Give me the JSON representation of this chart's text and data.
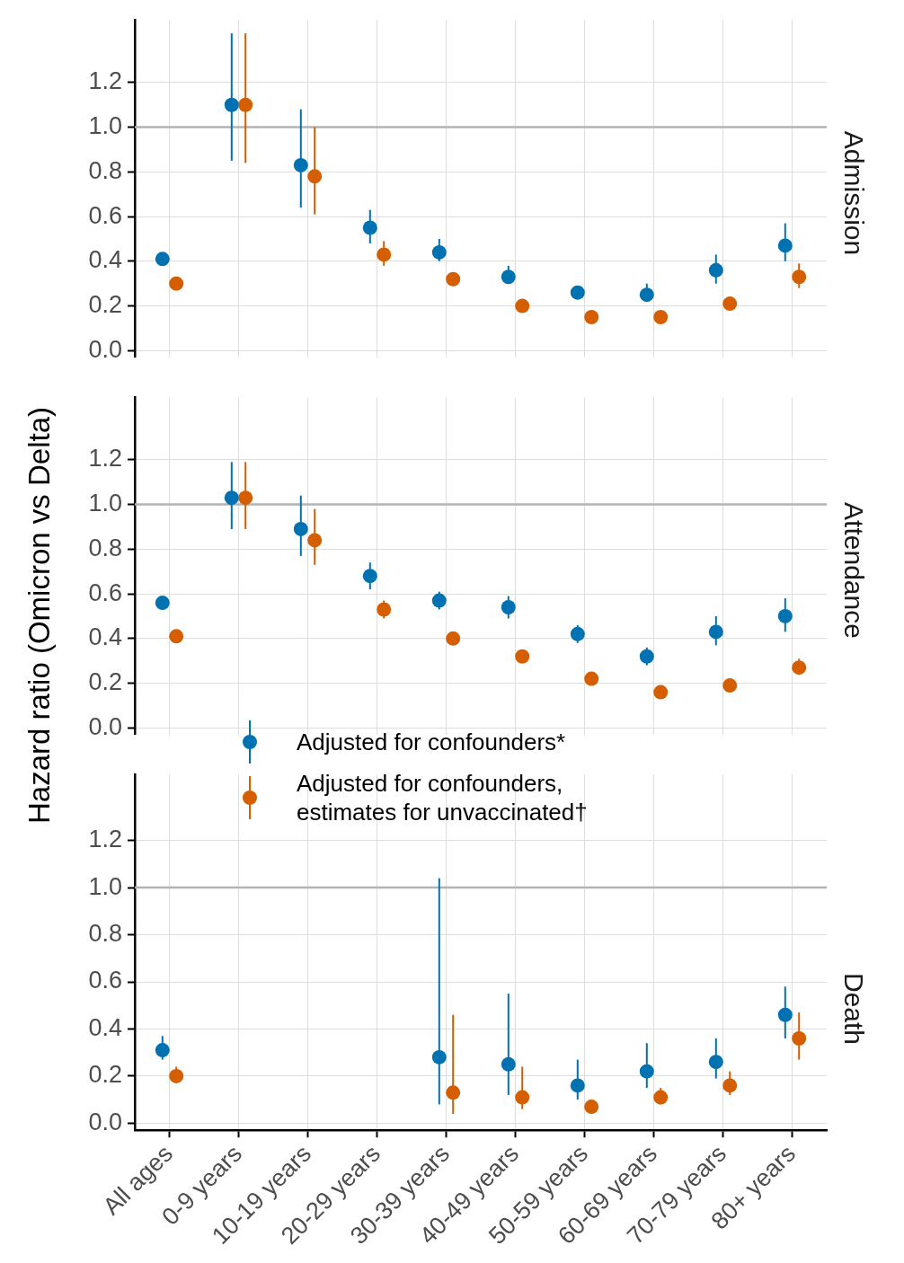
{
  "chart_data": [
    {
      "type": "scatter",
      "title": "Admission",
      "categories": [
        null,
        null,
        null,
        null,
        null,
        null,
        null,
        null,
        null,
        null
      ],
      "series": [
        {
          "color": "#0072b2",
          "values": [
            0.41,
            1.1,
            0.83,
            0.55,
            0.44,
            0.33,
            0.26,
            0.25,
            0.36,
            0.47
          ],
          "errors": [
            null,
            [
              0.85,
              1.42
            ],
            [
              0.64,
              1.08
            ],
            [
              0.48,
              0.63
            ],
            [
              0.4,
              0.5
            ],
            [
              0.3,
              0.38
            ],
            [
              0.23,
              0.29
            ],
            [
              0.22,
              0.3
            ],
            [
              0.3,
              0.43
            ],
            [
              0.4,
              0.57
            ]
          ]
        },
        {
          "color": "#d55e00",
          "values": [
            0.3,
            1.1,
            0.78,
            0.43,
            0.32,
            0.2,
            0.15,
            0.15,
            0.21,
            0.33
          ],
          "errors": [
            null,
            [
              0.84,
              1.42
            ],
            [
              0.61,
              1.0
            ],
            [
              0.38,
              0.49
            ],
            [
              0.29,
              0.35
            ],
            null,
            null,
            null,
            [
              0.19,
              0.24
            ],
            [
              0.28,
              0.39
            ]
          ]
        }
      ],
      "ylim": [
        -0.03,
        1.48
      ],
      "yticks": [
        {
          "value": 0,
          "label": "0.0"
        },
        {
          "value": 0.2,
          "label": "0.2"
        },
        {
          "value": 0.4,
          "label": "0.4"
        },
        {
          "value": 0.6,
          "label": "0.6"
        },
        {
          "value": 0.8,
          "label": "0.8"
        },
        {
          "value": 1,
          "label": "1.0"
        },
        {
          "value": 1.2,
          "label": "1.2"
        }
      ],
      "ref_lines": [
        {
          "axis": "y",
          "value": 1,
          "color": "#b3b3b3"
        }
      ],
      "grid": true,
      "marker": "circle",
      "tick_labels": "y"
    },
    {
      "type": "scatter",
      "title": "Attendance",
      "ylabel": "Hazard ratio (Omicron vs Delta)",
      "categories": [
        null,
        null,
        null,
        null,
        null,
        null,
        null,
        null,
        null,
        null
      ],
      "series": [
        {
          "name": "Adjusted for confounders*",
          "color": "#0072b2",
          "values": [
            0.56,
            1.03,
            0.89,
            0.68,
            0.57,
            0.54,
            0.42,
            0.32,
            0.43,
            0.5
          ],
          "errors": [
            null,
            [
              0.89,
              1.19
            ],
            [
              0.77,
              1.04
            ],
            [
              0.62,
              0.74
            ],
            [
              0.53,
              0.61
            ],
            [
              0.49,
              0.59
            ],
            [
              0.38,
              0.46
            ],
            [
              0.28,
              0.36
            ],
            [
              0.37,
              0.5
            ],
            [
              0.43,
              0.58
            ]
          ]
        },
        {
          "name": "Adjusted for confounders, estimates for unvaccinated†",
          "color": "#d55e00",
          "values": [
            0.41,
            1.03,
            0.84,
            0.53,
            0.4,
            0.32,
            0.22,
            0.16,
            0.19,
            0.27
          ],
          "errors": [
            null,
            [
              0.89,
              1.19
            ],
            [
              0.73,
              0.98
            ],
            [
              0.49,
              0.57
            ],
            null,
            null,
            null,
            null,
            null,
            [
              0.24,
              0.31
            ]
          ]
        }
      ],
      "ylim": [
        -0.03,
        1.48
      ],
      "yticks": [
        {
          "value": 0,
          "label": "0.0"
        },
        {
          "value": 0.2,
          "label": "0.2"
        },
        {
          "value": 0.4,
          "label": "0.4"
        },
        {
          "value": 0.6,
          "label": "0.6"
        },
        {
          "value": 0.8,
          "label": "0.8"
        },
        {
          "value": 1,
          "label": "1.0"
        },
        {
          "value": 1.2,
          "label": "1.2"
        }
      ],
      "ref_lines": [
        {
          "axis": "y",
          "value": 1,
          "color": "#b3b3b3"
        }
      ],
      "grid": true,
      "marker": "circle",
      "legend": "bottom left",
      "tick_labels": "y"
    },
    {
      "type": "scatter",
      "title": "Death",
      "categories": [
        "All ages",
        "0-9 years",
        "10-19 years",
        "20-29 years",
        "30-39 years",
        "40-49 years",
        "50-59 years",
        "60-69 years",
        "70-79 years",
        "80+ years"
      ],
      "series": [
        {
          "color": "#0072b2",
          "values": [
            0.31,
            null,
            null,
            null,
            0.28,
            0.25,
            0.16,
            0.22,
            0.26,
            0.46
          ],
          "errors": [
            [
              0.27,
              0.37
            ],
            null,
            null,
            null,
            [
              0.08,
              1.04
            ],
            [
              0.12,
              0.55
            ],
            [
              0.1,
              0.27
            ],
            [
              0.15,
              0.34
            ],
            [
              0.19,
              0.36
            ],
            [
              0.36,
              0.58
            ]
          ]
        },
        {
          "color": "#d55e00",
          "values": [
            0.2,
            null,
            null,
            null,
            0.13,
            0.11,
            0.07,
            0.11,
            0.16,
            0.36
          ],
          "errors": [
            [
              0.17,
              0.24
            ],
            null,
            null,
            null,
            [
              0.04,
              0.46
            ],
            [
              0.06,
              0.24
            ],
            [
              0.04,
              0.1
            ],
            [
              0.08,
              0.15
            ],
            [
              0.12,
              0.22
            ],
            [
              0.27,
              0.47
            ]
          ]
        }
      ],
      "ylim": [
        -0.03,
        1.48
      ],
      "yticks": [
        {
          "value": 0,
          "label": "0.0"
        },
        {
          "value": 0.2,
          "label": "0.2"
        },
        {
          "value": 0.4,
          "label": "0.4"
        },
        {
          "value": 0.6,
          "label": "0.6"
        },
        {
          "value": 0.8,
          "label": "0.8"
        },
        {
          "value": 1,
          "label": "1.0"
        },
        {
          "value": 1.2,
          "label": "1.2"
        }
      ],
      "ref_lines": [
        {
          "axis": "y",
          "value": 1,
          "color": "#b3b3b3"
        }
      ],
      "grid": true,
      "marker": "circle"
    }
  ]
}
